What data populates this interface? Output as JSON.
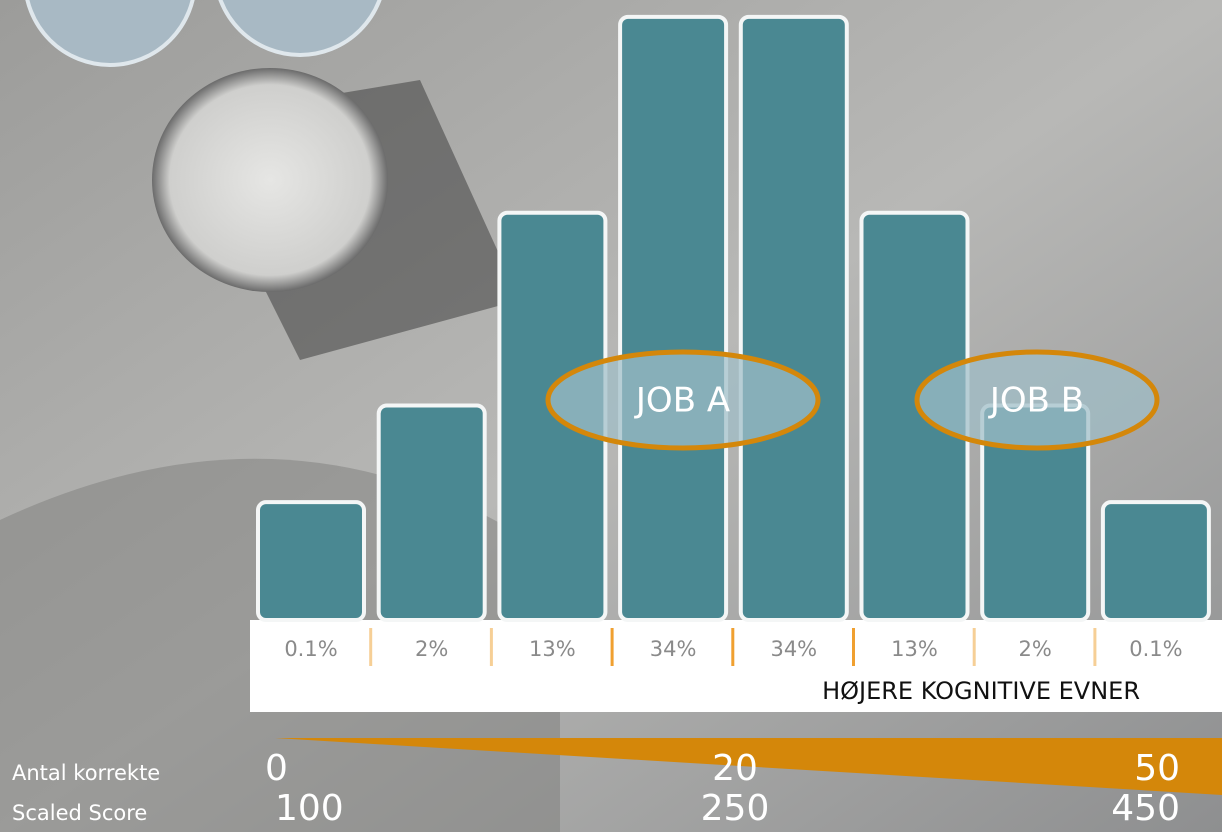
{
  "chart_data": {
    "type": "bar",
    "values": [
      0.1,
      2,
      13,
      34,
      34,
      13,
      2,
      0.1
    ],
    "value_labels": [
      "0.1%",
      "2%",
      "13%",
      "34%",
      "34%",
      "13%",
      "2%",
      "0.1%"
    ],
    "color": "#4a8892",
    "annotations": [
      "JOB A",
      "JOB B"
    ],
    "x_label": "HØJERE KOGNITIVE EVNER",
    "scales": [
      {
        "name": "Antal korrekte",
        "ticks": [
          0,
          20,
          50
        ]
      },
      {
        "name": "Scaled Score",
        "ticks": [
          100,
          250,
          450
        ]
      }
    ]
  }
}
